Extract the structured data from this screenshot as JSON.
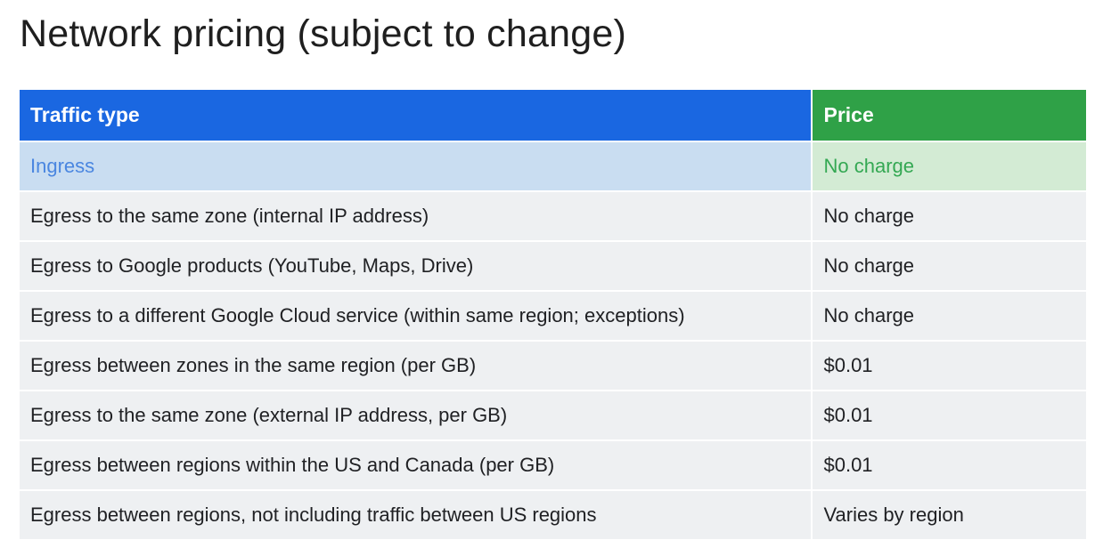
{
  "title": "Network pricing (subject to change)",
  "colors": {
    "header_type_bg": "#1a67e1",
    "header_price_bg": "#2fa147",
    "highlight_type_bg": "#c9ddf1",
    "highlight_price_bg": "#d3ebd4",
    "row_bg": "#eef0f2"
  },
  "table": {
    "headers": {
      "traffic_type": "Traffic type",
      "price": "Price"
    },
    "rows": [
      {
        "traffic_type": "Ingress",
        "price": "No charge"
      },
      {
        "traffic_type": "Egress to the same zone (internal IP address)",
        "price": "No charge"
      },
      {
        "traffic_type": "Egress to Google products (YouTube, Maps, Drive)",
        "price": "No charge"
      },
      {
        "traffic_type": "Egress to a different Google Cloud service (within same region; exceptions)",
        "price": "No charge"
      },
      {
        "traffic_type": "Egress between zones in the same region (per GB)",
        "price": "$0.01"
      },
      {
        "traffic_type": "Egress to the same zone (external IP address, per GB)",
        "price": "$0.01"
      },
      {
        "traffic_type": "Egress between regions within the US and Canada (per GB)",
        "price": "$0.01"
      },
      {
        "traffic_type": "Egress between regions, not including traffic between US regions",
        "price": "Varies by region"
      }
    ]
  }
}
